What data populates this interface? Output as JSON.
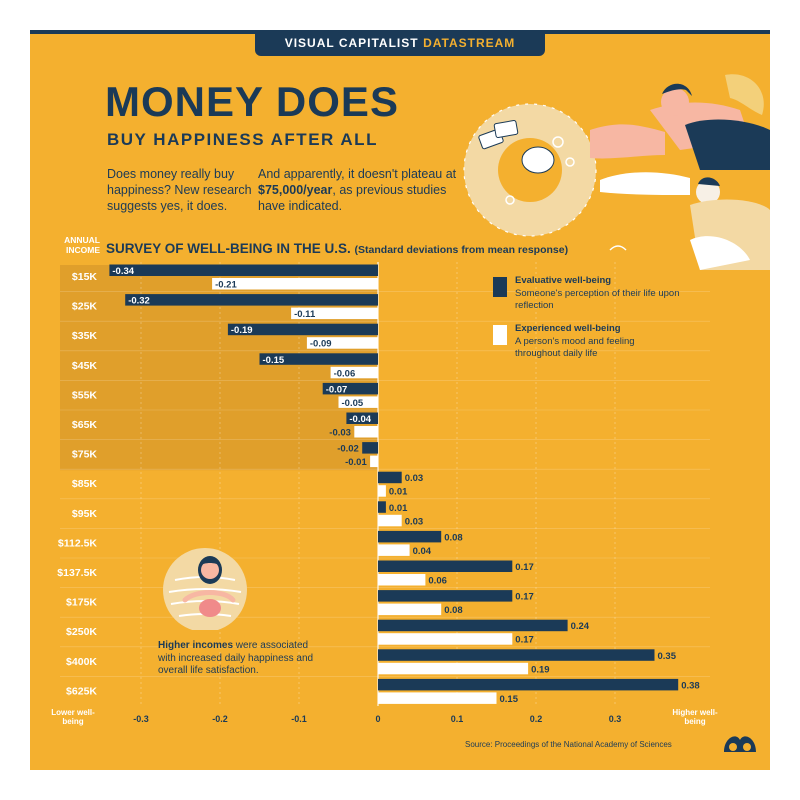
{
  "brand": {
    "name": "VISUAL CAPITALIST",
    "stream": "DATASTREAM"
  },
  "title": "MONEY DOES",
  "subtitle": "BUY HAPPINESS AFTER ALL",
  "intro1": "Does money really buy happiness? New research suggests yes, it does.",
  "intro2": {
    "before": "And apparently, it doesn't plateau at ",
    "bold": "$75,000/year",
    "after": ", as previous studies have indicated."
  },
  "annual_income_label": "ANNUAL INCOME",
  "note": {
    "bold": "Higher incomes",
    "rest": " were associated with increased daily happiness and overall life satisfaction."
  },
  "source": "Source: Proceedings of the National Academy of Sciences",
  "axis_end_labels": {
    "lower": "Lower well-being",
    "higher": "Higher well-being"
  },
  "colors": {
    "background": "#f4b02f",
    "navy": "#1b3a57",
    "white": "#ffffff",
    "highlight": "#d99a2b"
  },
  "legend": [
    {
      "title": "Evaluative well-being",
      "desc": "Someone's perception of their life upon reflection",
      "color": "#1b3a57"
    },
    {
      "title": "Experienced well-being",
      "desc": "A person's mood and feeling throughout daily life",
      "color": "#ffffff"
    }
  ],
  "chart_data": {
    "type": "bar",
    "orientation": "horizontal",
    "title": "SURVEY OF WELL-BEING IN THE U.S.",
    "subtitle": "(Standard deviations from mean response)",
    "categories": [
      "$15K",
      "$25K",
      "$35K",
      "$45K",
      "$55K",
      "$65K",
      "$75K",
      "$85K",
      "$95K",
      "$112.5K",
      "$137.5K",
      "$175K",
      "$250K",
      "$400K",
      "$625K"
    ],
    "series": [
      {
        "name": "Evaluative well-being",
        "color": "#1b3a57",
        "values": [
          -0.34,
          -0.32,
          -0.19,
          -0.15,
          -0.07,
          -0.04,
          -0.02,
          0.03,
          0.01,
          0.08,
          0.17,
          0.17,
          0.24,
          0.35,
          0.38
        ]
      },
      {
        "name": "Experienced well-being",
        "color": "#ffffff",
        "values": [
          -0.21,
          -0.11,
          -0.09,
          -0.06,
          -0.05,
          -0.03,
          -0.01,
          0.01,
          0.03,
          0.04,
          0.06,
          0.08,
          0.17,
          0.19,
          0.15
        ]
      }
    ],
    "value_labels": [
      [
        "-0.34",
        "-0.32",
        "-0.19",
        "-0.15",
        "-0.07",
        "-0.04",
        "-0.02",
        "0.03",
        "0.01",
        "0.08",
        "0.17",
        "0.17",
        "0.24",
        "0.35",
        "0.38"
      ],
      [
        "-0.21",
        "-0.11",
        "-0.09",
        "-0.06",
        "-0.05",
        "-0.03",
        "-0.01",
        "0.01",
        "0.03",
        "0.04",
        "0.06",
        "0.08",
        "0.17",
        "0.19",
        "0.15"
      ]
    ],
    "xticks": [
      -0.3,
      -0.2,
      -0.1,
      0,
      0.1,
      0.2,
      0.3
    ],
    "xtick_labels": [
      "-0.3",
      "-0.2",
      "-0.1",
      "0",
      "0.1",
      "0.2",
      "0.3"
    ],
    "xlim": [
      -0.38,
      0.4
    ],
    "highlighted_range": [
      "$15K",
      "$75K"
    ],
    "legend_position": "top-right",
    "grid": true
  }
}
